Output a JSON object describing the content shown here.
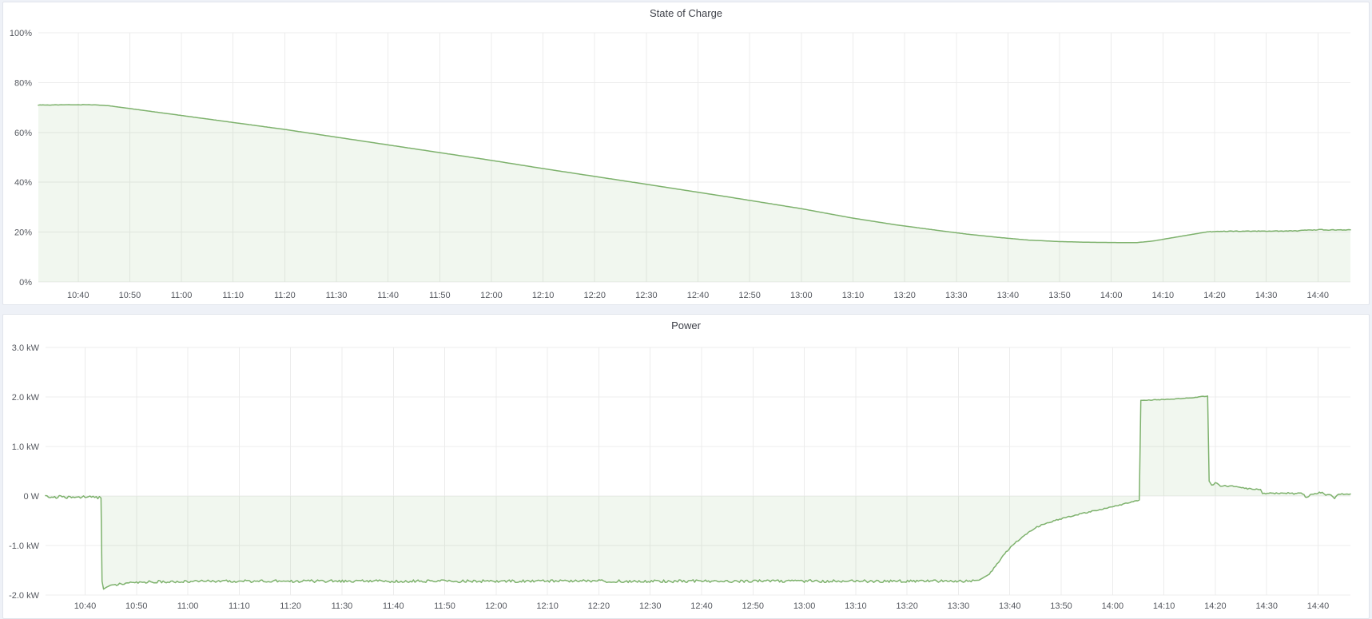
{
  "page": {
    "background": "#eef1f7",
    "panel_background": "#ffffff"
  },
  "panels": [
    {
      "title": "State of Charge"
    },
    {
      "title": "Power"
    }
  ],
  "chart_data": [
    {
      "type": "area",
      "title": "State of Charge",
      "unit": "percent",
      "line_color": "#7EB26D",
      "fill_color": "rgba(126,178,109,0.11)",
      "grid_color": "#ececec",
      "legend": "none",
      "x_axis_note": "time of day, ticks every 10 minutes",
      "x_tick_labels": [
        "10:40",
        "10:50",
        "11:00",
        "11:10",
        "11:20",
        "11:30",
        "11:40",
        "11:50",
        "12:00",
        "12:10",
        "12:20",
        "12:30",
        "12:40",
        "12:50",
        "13:00",
        "13:10",
        "13:20",
        "13:30",
        "13:40",
        "13:50",
        "14:00",
        "14:10",
        "14:20",
        "14:30",
        "14:40"
      ],
      "x_tick_minutes": [
        0,
        10,
        20,
        30,
        40,
        50,
        60,
        70,
        80,
        90,
        100,
        110,
        120,
        130,
        140,
        150,
        160,
        170,
        180,
        190,
        200,
        210,
        220,
        230,
        240
      ],
      "t_range_minutes": [
        -7.7,
        246.3
      ],
      "y_range": [
        0,
        100
      ],
      "y_ticks": [
        {
          "label": "100%",
          "value": 100
        },
        {
          "label": "80%",
          "value": 80
        },
        {
          "label": "60%",
          "value": 60
        },
        {
          "label": "40%",
          "value": 40
        },
        {
          "label": "20%",
          "value": 20
        },
        {
          "label": "0%",
          "value": 0
        }
      ],
      "series": [
        {
          "name": "State of Charge",
          "seed": 3,
          "keypoints": [
            [
              -7.7,
              71.0
            ],
            [
              0,
              71.1
            ],
            [
              3,
              71.1
            ],
            [
              6,
              70.7
            ],
            [
              20,
              66.8
            ],
            [
              40,
              61.2
            ],
            [
              60,
              55.0
            ],
            [
              80,
              48.8
            ],
            [
              90,
              45.5
            ],
            [
              110,
              39.2
            ],
            [
              125,
              34.4
            ],
            [
              140,
              29.4
            ],
            [
              150,
              25.6
            ],
            [
              158,
              23.0
            ],
            [
              166,
              20.8
            ],
            [
              172,
              19.2
            ],
            [
              178,
              17.9
            ],
            [
              184,
              16.8
            ],
            [
              190,
              16.2
            ],
            [
              196,
              15.9
            ],
            [
              202,
              15.8
            ],
            [
              205,
              15.8
            ],
            [
              208,
              16.4
            ],
            [
              212,
              17.8
            ],
            [
              216,
              19.2
            ],
            [
              218.6,
              20.1
            ],
            [
              220,
              20.25
            ],
            [
              224,
              20.4
            ],
            [
              230,
              20.4
            ],
            [
              236,
              20.45
            ],
            [
              237.5,
              20.85
            ],
            [
              239,
              20.8
            ],
            [
              240.5,
              21.0
            ],
            [
              242,
              20.85
            ],
            [
              246.3,
              20.9
            ]
          ],
          "noise": [
            {
              "from": 219,
              "to": 246.3,
              "amp": 0.12
            },
            {
              "from": -7.7,
              "to": 3,
              "amp": 0.08
            }
          ]
        }
      ]
    },
    {
      "type": "area",
      "title": "Power",
      "unit": "watt",
      "line_color": "#7EB26D",
      "fill_color": "rgba(126,178,109,0.11)",
      "grid_color": "#ececec",
      "legend": "none",
      "x_axis_note": "time of day, ticks every 10 minutes",
      "x_tick_labels": [
        "10:40",
        "10:50",
        "11:00",
        "11:10",
        "11:20",
        "11:30",
        "11:40",
        "11:50",
        "12:00",
        "12:10",
        "12:20",
        "12:30",
        "12:40",
        "12:50",
        "13:00",
        "13:10",
        "13:20",
        "13:30",
        "13:40",
        "13:50",
        "14:00",
        "14:10",
        "14:20",
        "14:30",
        "14:40"
      ],
      "x_tick_minutes": [
        0,
        10,
        20,
        30,
        40,
        50,
        60,
        70,
        80,
        90,
        100,
        110,
        120,
        130,
        140,
        150,
        160,
        170,
        180,
        190,
        200,
        210,
        220,
        230,
        240
      ],
      "t_range_minutes": [
        -7.7,
        246.3
      ],
      "y_range": [
        -2,
        3
      ],
      "y_ticks": [
        {
          "label": "3.0 kW",
          "value": 3
        },
        {
          "label": "2.0 kW",
          "value": 2
        },
        {
          "label": "1.0 kW",
          "value": 1
        },
        {
          "label": "0 W",
          "value": 0
        },
        {
          "label": "-1.0 kW",
          "value": -1
        },
        {
          "label": "-2.0 kW",
          "value": -2
        }
      ],
      "series": [
        {
          "name": "Power",
          "seed": 11,
          "keypoints": [
            [
              -7.7,
              -0.02
            ],
            [
              0,
              -0.02
            ],
            [
              3.1,
              -0.04
            ],
            [
              3.3,
              -1.72
            ],
            [
              3.6,
              -1.88
            ],
            [
              4.2,
              -1.84
            ],
            [
              5,
              -1.8
            ],
            [
              7,
              -1.77
            ],
            [
              10,
              -1.75
            ],
            [
              14,
              -1.73
            ],
            [
              20,
              -1.72
            ],
            [
              60,
              -1.72
            ],
            [
              100,
              -1.72
            ],
            [
              140,
              -1.72
            ],
            [
              170,
              -1.72
            ],
            [
              174,
              -1.7
            ],
            [
              176,
              -1.58
            ],
            [
              177.5,
              -1.38
            ],
            [
              179,
              -1.16
            ],
            [
              181,
              -0.95
            ],
            [
              183,
              -0.78
            ],
            [
              185,
              -0.64
            ],
            [
              187,
              -0.55
            ],
            [
              190,
              -0.46
            ],
            [
              193,
              -0.38
            ],
            [
              196,
              -0.31
            ],
            [
              199,
              -0.24
            ],
            [
              202,
              -0.17
            ],
            [
              204,
              -0.11
            ],
            [
              205.2,
              -0.08
            ],
            [
              205.5,
              1.93
            ],
            [
              208,
              1.94
            ],
            [
              212,
              1.96
            ],
            [
              215,
              1.98
            ],
            [
              218.5,
              2.02
            ],
            [
              218.8,
              0.3
            ],
            [
              219.3,
              0.22
            ],
            [
              220,
              0.26
            ],
            [
              221,
              0.21
            ],
            [
              223,
              0.2
            ],
            [
              224.5,
              0.17
            ],
            [
              226,
              0.15
            ],
            [
              228,
              0.14
            ],
            [
              228.8,
              0.13
            ],
            [
              229.2,
              0.05
            ],
            [
              231,
              0.05
            ],
            [
              233,
              0.06
            ],
            [
              235,
              0.05
            ],
            [
              237,
              0.05
            ],
            [
              237.8,
              -0.04
            ],
            [
              238.5,
              0.04
            ],
            [
              240,
              0.06
            ],
            [
              240.8,
              0.08
            ],
            [
              241.5,
              0.03
            ],
            [
              242.5,
              0.02
            ],
            [
              243.2,
              -0.04
            ],
            [
              244,
              0.05
            ],
            [
              245,
              0.03
            ],
            [
              246.3,
              0.04
            ]
          ],
          "noise": [
            {
              "from": -7.7,
              "to": 3.0,
              "amp": 0.03
            },
            {
              "from": 6,
              "to": 173,
              "amp": 0.028
            },
            {
              "from": 176,
              "to": 205,
              "amp": 0.012
            },
            {
              "from": 206,
              "to": 218.4,
              "amp": 0.006
            },
            {
              "from": 219.5,
              "to": 246.3,
              "amp": 0.015
            }
          ]
        }
      ]
    }
  ]
}
